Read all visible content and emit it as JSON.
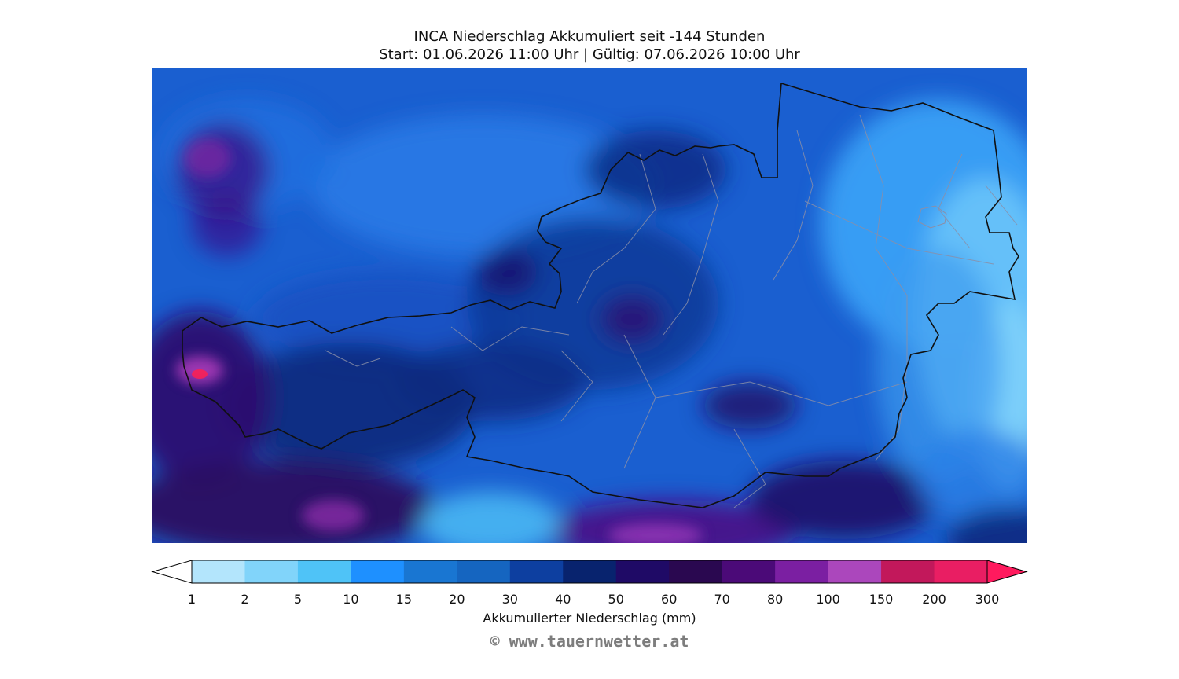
{
  "title": {
    "line1": "INCA Niederschlag Akkumuliert seit -144 Stunden",
    "line2": "Start: 01.06.2026 11:00 Uhr | Gültig: 07.06.2026 10:00 Uhr"
  },
  "colorbar": {
    "label": "Akkumulierter Niederschlag (mm)",
    "ticks": [
      "1",
      "2",
      "5",
      "10",
      "15",
      "20",
      "30",
      "40",
      "50",
      "60",
      "70",
      "80",
      "100",
      "150",
      "200",
      "300"
    ],
    "colors": [
      "#b3e5fc",
      "#81d4fa",
      "#4fc3f7",
      "#1e90ff",
      "#1976d2",
      "#1565c0",
      "#0d3fa0",
      "#08236e",
      "#1f0a66",
      "#2a0850",
      "#4b0a78",
      "#7b1fa2",
      "#ab47bc",
      "#c2185b",
      "#e91e63"
    ],
    "under_color": "#ffffff",
    "over_color": "#ff1a5e"
  },
  "map": {
    "base_color": "#1a5fd0",
    "region": "Österreich"
  },
  "copyright": "© www.tauernwetter.at"
}
